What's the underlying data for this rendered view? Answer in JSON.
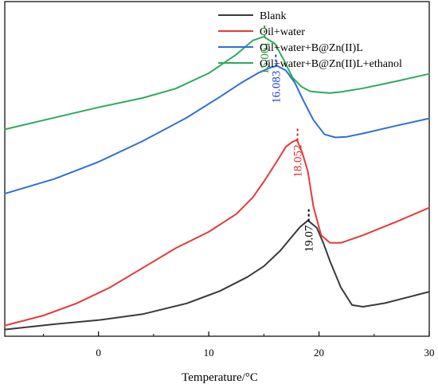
{
  "chart_data": {
    "type": "line",
    "title": "",
    "xlabel": "Temperature/°C",
    "ylabel": "",
    "xlim": [
      -8.5,
      30
    ],
    "ylim": [
      0,
      100
    ],
    "x_ticks": [
      0,
      10,
      20,
      30
    ],
    "grid": false,
    "legend_position": "top-right",
    "series": [
      {
        "name": "Blank",
        "color": "#3a3a3a",
        "x": [
          -8.5,
          -4,
          0,
          4,
          8,
          11,
          13.5,
          15,
          16.5,
          17.5,
          18.3,
          19,
          19.8,
          20.4,
          21,
          22,
          23,
          24,
          26,
          28,
          30
        ],
        "y": [
          2,
          3.6,
          4.8,
          6.6,
          9.8,
          13.5,
          17.7,
          20.9,
          25.6,
          29.6,
          32.7,
          34.6,
          32.4,
          27.8,
          22.4,
          14.5,
          9.3,
          8.8,
          9.9,
          11.6,
          13.3
        ]
      },
      {
        "name": "Oil+water",
        "color": "#e33b3b",
        "x": [
          -8.5,
          -5,
          -2,
          1,
          4,
          7,
          10,
          12.5,
          14,
          15,
          16,
          17,
          17.5,
          18,
          18.5,
          19,
          19.5,
          20.2,
          21,
          22,
          24,
          27,
          30
        ],
        "y": [
          3.2,
          6.2,
          9.8,
          14.5,
          20.4,
          26.3,
          31.2,
          36.5,
          41.5,
          46.2,
          51.3,
          56.6,
          57.9,
          58.7,
          54.7,
          49.1,
          38.7,
          30.2,
          27.9,
          27.9,
          30.2,
          34.2,
          38.4
        ]
      },
      {
        "name": "Oil+water+B@Zn(II)L",
        "color": "#2f6fd6",
        "x": [
          -8.5,
          -4,
          0,
          4,
          8,
          11,
          13,
          14.5,
          15.5,
          16.2,
          17,
          17.8,
          18.6,
          19.5,
          20.5,
          21.5,
          22.5,
          24,
          27,
          30
        ],
        "y": [
          42.6,
          47,
          52.1,
          58.3,
          65.3,
          71.5,
          75.8,
          78.7,
          80.2,
          80.8,
          79.4,
          75.8,
          70.3,
          64.6,
          60.3,
          59.4,
          59.6,
          60.6,
          62.9,
          65.1
        ]
      },
      {
        "name": "Oil+water+B@Zn(II)L+ethanol",
        "color": "#2eaa5c",
        "x": [
          -8.5,
          -4,
          0,
          4,
          7,
          10,
          12.5,
          14,
          15,
          16,
          16.8,
          17.6,
          18.4,
          19.2,
          20,
          21,
          22,
          24,
          27,
          30
        ],
        "y": [
          61.8,
          65.3,
          68.4,
          71.2,
          74,
          78.6,
          84.2,
          88.4,
          89.5,
          87.4,
          82.6,
          77.3,
          74.6,
          73.2,
          72.9,
          72.7,
          73,
          74.1,
          76.2,
          78.4
        ]
      }
    ],
    "annotations": [
      {
        "text": "15.061",
        "x": 15.061,
        "y": 89.5,
        "color": "#2e9a3a"
      },
      {
        "text": "16.083",
        "x": 16.083,
        "y": 80.8,
        "color": "#1f3fd0"
      },
      {
        "text": "18.052",
        "x": 18.052,
        "y": 58.7,
        "color": "#d82a2a"
      },
      {
        "text": "19.07",
        "x": 19.07,
        "y": 34.6,
        "color": "#000000"
      }
    ]
  }
}
